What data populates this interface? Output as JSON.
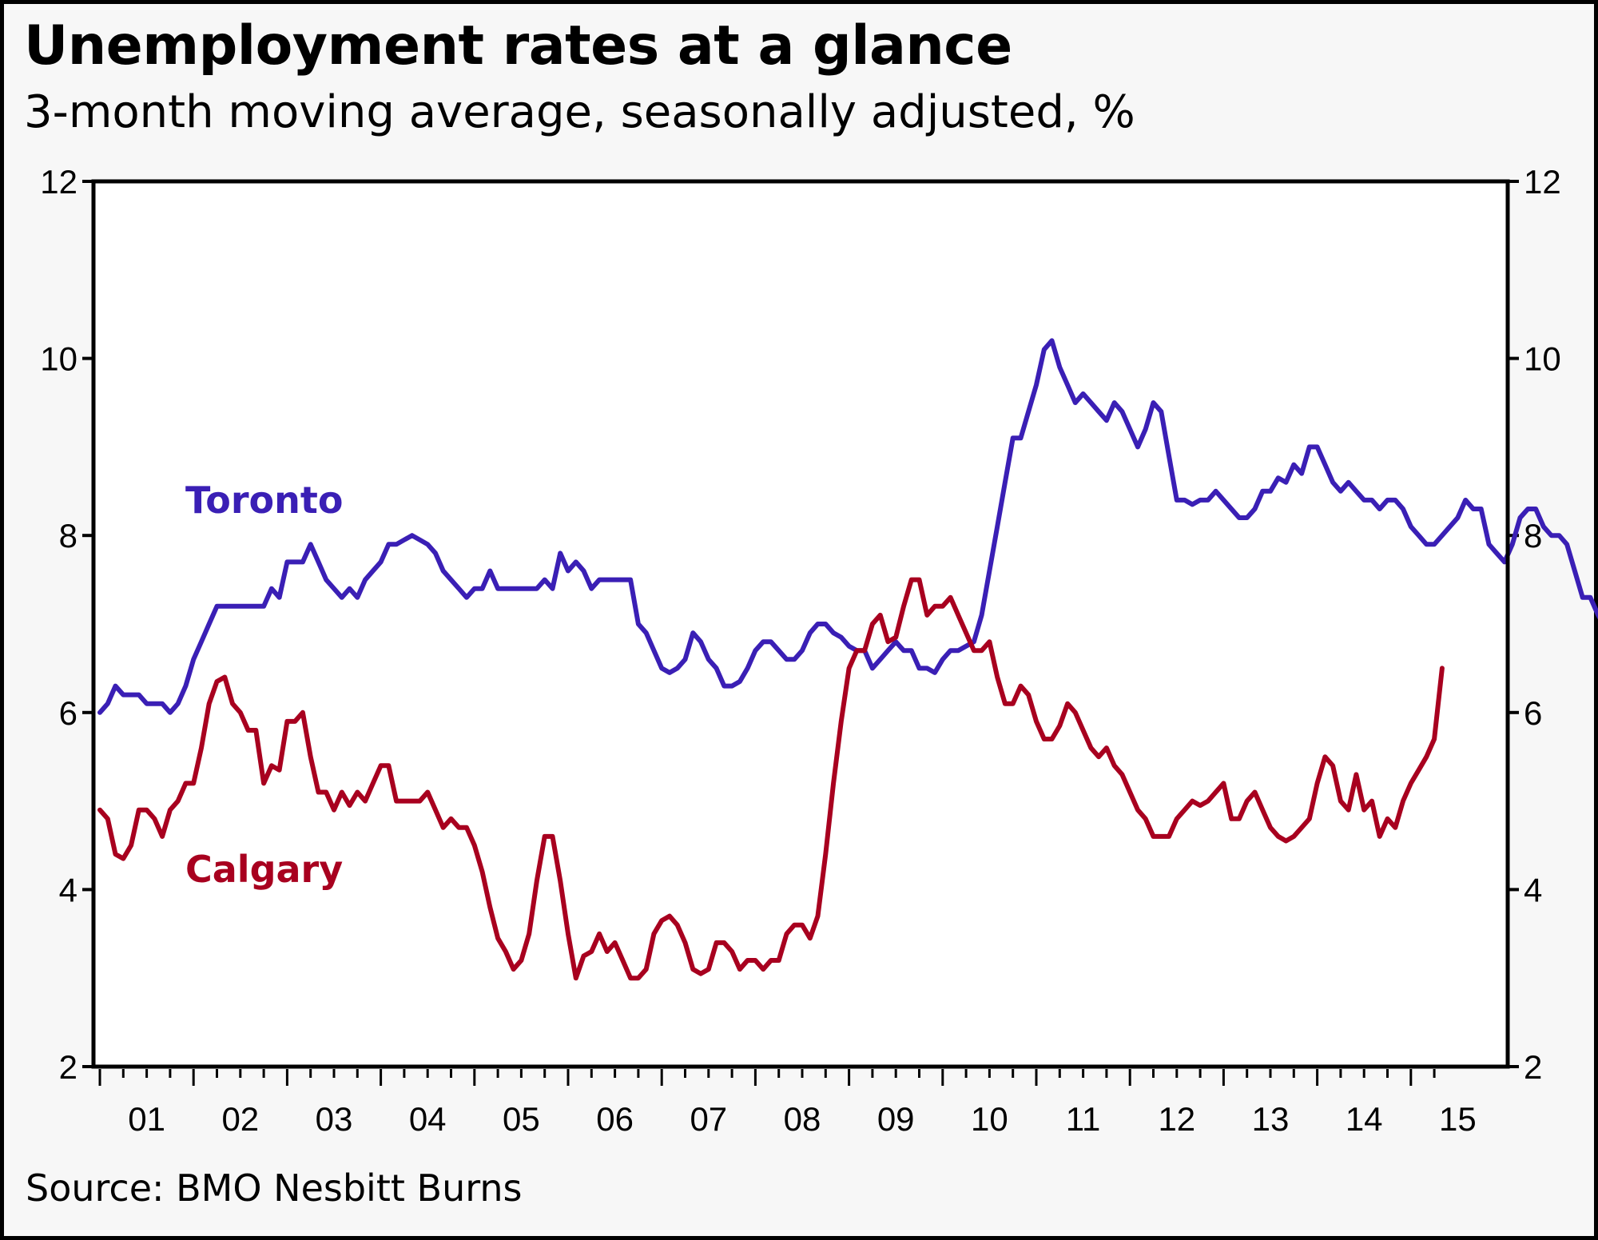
{
  "title": "Unemployment rates at a glance",
  "subtitle": "3-month moving average, seasonally adjusted, %",
  "source": "Source: BMO Nesbitt Burns",
  "chart_data": {
    "type": "line",
    "title": "Unemployment rates at a glance",
    "subtitle": "3-month moving average, seasonally adjusted, %",
    "xlabel": "",
    "ylabel": "%",
    "ylim": [
      2,
      12
    ],
    "yticks": [
      2,
      4,
      6,
      8,
      10,
      12
    ],
    "ytick_labels": [
      "2",
      "4",
      "6",
      "8",
      "10",
      "12"
    ],
    "right_axis_mirrors_left": true,
    "xlim_years": [
      2001.0,
      2015.3
    ],
    "xtick_labels": [
      "01",
      "02",
      "03",
      "04",
      "05",
      "06",
      "07",
      "08",
      "09",
      "10",
      "11",
      "12",
      "13",
      "14",
      "15"
    ],
    "x_start": "2001-01",
    "x_frequency": "monthly",
    "grid": false,
    "legend": "inline labels",
    "series": [
      {
        "name": "Toronto",
        "color": "#3a1fb5",
        "values": [
          6.0,
          6.1,
          6.3,
          6.2,
          6.2,
          6.2,
          6.1,
          6.1,
          6.1,
          6.0,
          6.1,
          6.3,
          6.6,
          6.8,
          7.0,
          7.2,
          7.2,
          7.2,
          7.2,
          7.2,
          7.2,
          7.2,
          7.4,
          7.3,
          7.7,
          7.7,
          7.7,
          7.9,
          7.7,
          7.5,
          7.4,
          7.3,
          7.4,
          7.3,
          7.5,
          7.6,
          7.7,
          7.9,
          7.9,
          7.95,
          8.0,
          7.95,
          7.9,
          7.8,
          7.6,
          7.5,
          7.4,
          7.3,
          7.4,
          7.4,
          7.6,
          7.4,
          7.4,
          7.4,
          7.4,
          7.4,
          7.4,
          7.5,
          7.4,
          7.8,
          7.6,
          7.7,
          7.6,
          7.4,
          7.5,
          7.5,
          7.5,
          7.5,
          7.5,
          7.0,
          6.9,
          6.7,
          6.5,
          6.45,
          6.5,
          6.6,
          6.9,
          6.8,
          6.6,
          6.5,
          6.3,
          6.3,
          6.35,
          6.5,
          6.7,
          6.8,
          6.8,
          6.7,
          6.6,
          6.6,
          6.7,
          6.9,
          7.0,
          7.0,
          6.9,
          6.85,
          6.75,
          6.7,
          6.7,
          6.5,
          6.6,
          6.7,
          6.8,
          6.7,
          6.7,
          6.5,
          6.5,
          6.45,
          6.6,
          6.7,
          6.7,
          6.75,
          6.8,
          7.1,
          7.6,
          8.1,
          8.6,
          9.1,
          9.1,
          9.4,
          9.7,
          10.1,
          10.2,
          9.9,
          9.7,
          9.5,
          9.6,
          9.5,
          9.4,
          9.3,
          9.5,
          9.4,
          9.2,
          9.0,
          9.2,
          9.5,
          9.4,
          8.9,
          8.4,
          8.4,
          8.35,
          8.4,
          8.4,
          8.5,
          8.4,
          8.3,
          8.2,
          8.2,
          8.3,
          8.5,
          8.5,
          8.65,
          8.6,
          8.8,
          8.7,
          9.0,
          9.0,
          8.8,
          8.6,
          8.5,
          8.6,
          8.5,
          8.4,
          8.4,
          8.3,
          8.4,
          8.4,
          8.3,
          8.1,
          8.0,
          7.9,
          7.9,
          8.0,
          8.1,
          8.2,
          8.4,
          8.3,
          8.3,
          7.9,
          7.8,
          7.7,
          7.9,
          8.2,
          8.3,
          8.3,
          8.1,
          8.0,
          8.0,
          7.9,
          7.6,
          7.3,
          7.3,
          7.1,
          6.95,
          6.65
        ]
      },
      {
        "name": "Calgary",
        "color": "#a8001f",
        "values": [
          4.9,
          4.8,
          4.4,
          4.35,
          4.5,
          4.9,
          4.9,
          4.8,
          4.6,
          4.9,
          5.0,
          5.2,
          5.2,
          5.6,
          6.1,
          6.35,
          6.4,
          6.1,
          6.0,
          5.8,
          5.8,
          5.2,
          5.4,
          5.35,
          5.9,
          5.9,
          6.0,
          5.5,
          5.1,
          5.1,
          4.9,
          5.1,
          4.95,
          5.1,
          5.0,
          5.2,
          5.4,
          5.4,
          5.0,
          5.0,
          5.0,
          5.0,
          5.1,
          4.9,
          4.7,
          4.8,
          4.7,
          4.7,
          4.5,
          4.2,
          3.8,
          3.45,
          3.3,
          3.1,
          3.2,
          3.5,
          4.1,
          4.6,
          4.6,
          4.1,
          3.5,
          3.0,
          3.25,
          3.3,
          3.5,
          3.3,
          3.4,
          3.2,
          3.0,
          3.0,
          3.1,
          3.5,
          3.65,
          3.7,
          3.6,
          3.4,
          3.1,
          3.05,
          3.1,
          3.4,
          3.4,
          3.3,
          3.1,
          3.2,
          3.2,
          3.1,
          3.2,
          3.2,
          3.5,
          3.6,
          3.6,
          3.45,
          3.7,
          4.4,
          5.2,
          5.9,
          6.5,
          6.7,
          6.7,
          7.0,
          7.1,
          6.8,
          6.85,
          7.2,
          7.5,
          7.5,
          7.1,
          7.2,
          7.2,
          7.3,
          7.1,
          6.9,
          6.7,
          6.7,
          6.8,
          6.4,
          6.1,
          6.1,
          6.3,
          6.2,
          5.9,
          5.7,
          5.7,
          5.85,
          6.1,
          6.0,
          5.8,
          5.6,
          5.5,
          5.6,
          5.4,
          5.3,
          5.1,
          4.9,
          4.8,
          4.6,
          4.6,
          4.6,
          4.8,
          4.9,
          5.0,
          4.95,
          5.0,
          5.1,
          5.2,
          4.8,
          4.8,
          5.0,
          5.1,
          4.9,
          4.7,
          4.6,
          4.55,
          4.6,
          4.7,
          4.8,
          5.2,
          5.5,
          5.4,
          5.0,
          4.9,
          5.3,
          4.9,
          5.0,
          4.6,
          4.8,
          4.7,
          5.0,
          5.2,
          5.35,
          5.5,
          5.7,
          6.5
        ]
      }
    ],
    "series_labels": [
      {
        "text": "Toronto",
        "series": "Toronto"
      },
      {
        "text": "Calgary",
        "series": "Calgary"
      }
    ]
  }
}
